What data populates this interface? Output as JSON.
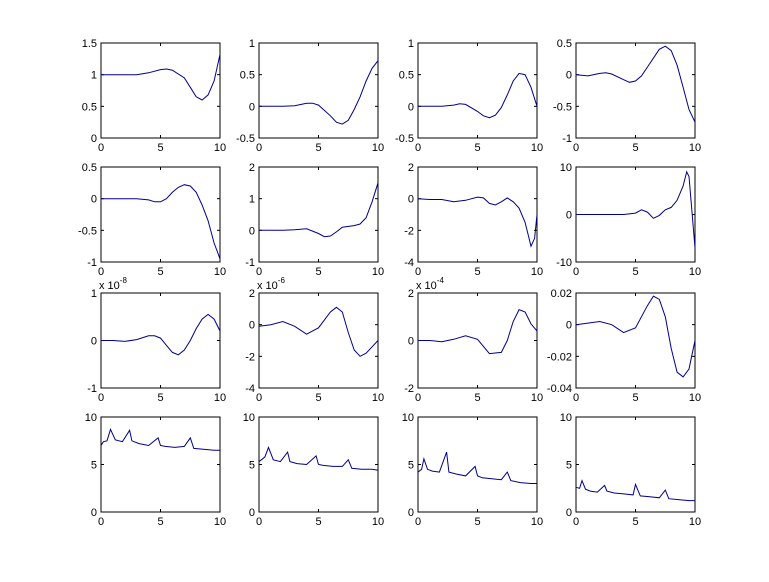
{
  "figure": {
    "background": "#ffffff",
    "line_color": "#00008b",
    "axes_color": "#000000"
  },
  "chart_data": [
    {
      "type": "line",
      "xlim": [
        0,
        10
      ],
      "ylim": [
        0,
        1.5
      ],
      "xticks": [
        "0",
        "5",
        "10"
      ],
      "yticks": [
        "0",
        "0.5",
        "1",
        "1.5"
      ],
      "exponent": "",
      "series": [
        {
          "x": [
            0,
            1,
            2,
            3,
            4,
            5,
            5.5,
            6,
            7,
            7.5,
            8,
            8.5,
            9,
            9.5,
            9.8,
            10
          ],
          "y": [
            1.0,
            1.0,
            1.0,
            1.0,
            1.03,
            1.08,
            1.09,
            1.07,
            0.95,
            0.8,
            0.65,
            0.6,
            0.68,
            0.9,
            1.15,
            1.32
          ]
        }
      ]
    },
    {
      "type": "line",
      "xlim": [
        0,
        10
      ],
      "ylim": [
        -0.5,
        1
      ],
      "xticks": [
        "0",
        "5",
        "10"
      ],
      "yticks": [
        "-0.5",
        "0",
        "0.5",
        "1"
      ],
      "exponent": "",
      "series": [
        {
          "x": [
            0,
            1,
            2,
            3,
            4,
            4.5,
            5,
            6,
            6.5,
            7,
            7.5,
            8,
            8.5,
            9,
            9.5,
            10
          ],
          "y": [
            0,
            0,
            0,
            0.01,
            0.05,
            0.05,
            0.02,
            -0.15,
            -0.25,
            -0.28,
            -0.22,
            -0.05,
            0.15,
            0.4,
            0.6,
            0.72
          ]
        }
      ]
    },
    {
      "type": "line",
      "xlim": [
        0,
        10
      ],
      "ylim": [
        -0.5,
        1
      ],
      "xticks": [
        "0",
        "5",
        "10"
      ],
      "yticks": [
        "-0.5",
        "0",
        "0.5",
        "1"
      ],
      "exponent": "",
      "series": [
        {
          "x": [
            0,
            1,
            2,
            3,
            3.5,
            4,
            5,
            5.5,
            6,
            6.5,
            7,
            7.5,
            8,
            8.5,
            9,
            9.5,
            10
          ],
          "y": [
            0,
            0,
            0,
            0.02,
            0.04,
            0.03,
            -0.08,
            -0.15,
            -0.18,
            -0.14,
            -0.02,
            0.18,
            0.4,
            0.52,
            0.5,
            0.3,
            0.0
          ]
        }
      ]
    },
    {
      "type": "line",
      "xlim": [
        0,
        10
      ],
      "ylim": [
        -1,
        0.5
      ],
      "xticks": [
        "0",
        "5",
        "10"
      ],
      "yticks": [
        "-1",
        "-0.5",
        "0",
        "0.5"
      ],
      "exponent": "",
      "series": [
        {
          "x": [
            0,
            1,
            2,
            2.5,
            3,
            4,
            4.5,
            5,
            5.5,
            6,
            7,
            7.5,
            8,
            8.5,
            9,
            9.5,
            10
          ],
          "y": [
            0,
            -0.02,
            0.02,
            0.03,
            0.01,
            -0.08,
            -0.12,
            -0.1,
            -0.02,
            0.12,
            0.4,
            0.45,
            0.38,
            0.15,
            -0.2,
            -0.55,
            -0.75
          ]
        }
      ]
    },
    {
      "type": "line",
      "xlim": [
        0,
        10
      ],
      "ylim": [
        -1,
        0.5
      ],
      "xticks": [
        "0",
        "5",
        "10"
      ],
      "yticks": [
        "-1",
        "-0.5",
        "0",
        "0.5"
      ],
      "exponent": "",
      "series": [
        {
          "x": [
            0,
            1,
            2,
            3,
            4,
            4.5,
            5,
            5.5,
            6,
            6.5,
            7,
            7.5,
            8,
            8.5,
            9,
            9.5,
            10
          ],
          "y": [
            0,
            0,
            0,
            0,
            -0.02,
            -0.05,
            -0.05,
            0,
            0.1,
            0.18,
            0.22,
            0.2,
            0.1,
            -0.1,
            -0.35,
            -0.7,
            -0.95
          ]
        }
      ]
    },
    {
      "type": "line",
      "xlim": [
        0,
        10
      ],
      "ylim": [
        -1,
        2
      ],
      "xticks": [
        "0",
        "5",
        "10"
      ],
      "yticks": [
        "-1",
        "0",
        "1",
        "2"
      ],
      "exponent": "",
      "series": [
        {
          "x": [
            0,
            1,
            2,
            3,
            4,
            5,
            5.5,
            6,
            6.5,
            7,
            8,
            8.5,
            9,
            9.5,
            10
          ],
          "y": [
            0,
            0,
            0,
            0.02,
            0.05,
            -0.1,
            -0.2,
            -0.18,
            -0.05,
            0.1,
            0.15,
            0.2,
            0.4,
            0.9,
            1.5
          ]
        }
      ]
    },
    {
      "type": "line",
      "xlim": [
        0,
        10
      ],
      "ylim": [
        -4,
        2
      ],
      "xticks": [
        "0",
        "5",
        "10"
      ],
      "yticks": [
        "-4",
        "-2",
        "0",
        "2"
      ],
      "exponent": "",
      "series": [
        {
          "x": [
            0,
            1,
            2,
            3,
            4,
            5,
            5.5,
            6,
            6.5,
            7,
            7.5,
            8,
            8.5,
            9,
            9.5,
            9.8,
            10
          ],
          "y": [
            0,
            -0.05,
            -0.05,
            -0.2,
            -0.1,
            0.1,
            0.05,
            -0.3,
            -0.4,
            -0.2,
            0.05,
            -0.2,
            -0.6,
            -1.5,
            -3.0,
            -2.5,
            -1.0
          ]
        }
      ]
    },
    {
      "type": "line",
      "xlim": [
        0,
        10
      ],
      "ylim": [
        -10,
        10
      ],
      "xticks": [
        "0",
        "5",
        "10"
      ],
      "yticks": [
        "-10",
        "0",
        "10"
      ],
      "exponent": "",
      "series": [
        {
          "x": [
            0,
            1,
            2,
            3,
            4,
            5,
            5.5,
            6,
            6.5,
            7,
            7.5,
            8,
            8.5,
            9,
            9.3,
            9.5,
            9.7,
            9.9,
            10
          ],
          "y": [
            0,
            0,
            0,
            0,
            0,
            0.3,
            1.0,
            0.5,
            -0.8,
            -0.2,
            1.0,
            1.5,
            3.0,
            6.0,
            9.0,
            8.0,
            2.0,
            -4.0,
            -7.0
          ]
        }
      ]
    },
    {
      "type": "line",
      "xlim": [
        0,
        10
      ],
      "ylim": [
        -1,
        1
      ],
      "xticks": [
        "0",
        "5",
        "10"
      ],
      "yticks": [
        "-1",
        "0",
        "1"
      ],
      "exponent": "x 10",
      "exponent_power": "-8",
      "series": [
        {
          "x": [
            0,
            1,
            2,
            3,
            4,
            4.5,
            5,
            5.5,
            6,
            6.5,
            7,
            7.5,
            8,
            8.5,
            9,
            9.5,
            10
          ],
          "y": [
            0,
            0,
            -0.02,
            0.02,
            0.1,
            0.1,
            0.05,
            -0.1,
            -0.25,
            -0.3,
            -0.2,
            0,
            0.25,
            0.45,
            0.55,
            0.45,
            0.2
          ]
        }
      ]
    },
    {
      "type": "line",
      "xlim": [
        0,
        10
      ],
      "ylim": [
        -4,
        2
      ],
      "xticks": [
        "0",
        "5",
        "10"
      ],
      "yticks": [
        "-4",
        "-2",
        "0",
        "2"
      ],
      "exponent": "x 10",
      "exponent_power": "-6",
      "series": [
        {
          "x": [
            0,
            1,
            2,
            3,
            4,
            5,
            6,
            6.5,
            7,
            7.5,
            8,
            8.5,
            9,
            9.5,
            10
          ],
          "y": [
            -0.1,
            0,
            0.2,
            -0.1,
            -0.6,
            -0.2,
            0.8,
            1.1,
            0.8,
            -0.5,
            -1.6,
            -2.0,
            -1.8,
            -1.4,
            -1.0
          ]
        }
      ]
    },
    {
      "type": "line",
      "xlim": [
        0,
        10
      ],
      "ylim": [
        -2,
        2
      ],
      "xticks": [
        "0",
        "5",
        "10"
      ],
      "yticks": [
        "-2",
        "0",
        "2"
      ],
      "exponent": "x 10",
      "exponent_power": "-4",
      "series": [
        {
          "x": [
            0,
            1,
            2,
            3,
            4,
            5,
            6,
            7,
            7.5,
            8,
            8.5,
            9,
            9.5,
            10
          ],
          "y": [
            0,
            0,
            -0.05,
            0.05,
            0.2,
            0.05,
            -0.55,
            -0.5,
            0,
            0.8,
            1.3,
            1.2,
            0.7,
            0.4
          ]
        }
      ]
    },
    {
      "type": "line",
      "xlim": [
        0,
        10
      ],
      "ylim": [
        -0.04,
        0.02
      ],
      "xticks": [
        "0",
        "5",
        "10"
      ],
      "yticks": [
        "-0.04",
        "-0.02",
        "0",
        "0.02"
      ],
      "exponent": "",
      "series": [
        {
          "x": [
            0,
            1,
            2,
            3,
            4,
            5,
            6,
            6.5,
            7,
            7.5,
            8,
            8.5,
            9,
            9.5,
            10
          ],
          "y": [
            0,
            0.001,
            0.002,
            0,
            -0.005,
            -0.002,
            0.012,
            0.018,
            0.016,
            0.005,
            -0.015,
            -0.03,
            -0.033,
            -0.028,
            -0.01
          ]
        }
      ]
    },
    {
      "type": "line",
      "xlim": [
        0,
        10
      ],
      "ylim": [
        0,
        10
      ],
      "xticks": [
        "0",
        "5",
        "10"
      ],
      "yticks": [
        "0",
        "5",
        "10"
      ],
      "exponent": "",
      "series": [
        {
          "x": [
            0,
            0.2,
            0.5,
            0.8,
            1.2,
            1.8,
            2.4,
            2.6,
            3.2,
            4.0,
            4.8,
            5.0,
            5.4,
            6.2,
            7.0,
            7.5,
            7.8,
            8.6,
            9.5,
            10
          ],
          "y": [
            7.0,
            7.4,
            7.5,
            8.7,
            7.6,
            7.4,
            8.6,
            7.5,
            7.2,
            7.0,
            7.8,
            7.0,
            6.9,
            6.8,
            6.9,
            7.8,
            6.7,
            6.6,
            6.5,
            6.5
          ]
        }
      ]
    },
    {
      "type": "line",
      "xlim": [
        0,
        10
      ],
      "ylim": [
        0,
        10
      ],
      "xticks": [
        "0",
        "5",
        "10"
      ],
      "yticks": [
        "0",
        "5",
        "10"
      ],
      "exponent": "",
      "series": [
        {
          "x": [
            0,
            0.3,
            0.5,
            0.8,
            1.2,
            1.8,
            2.4,
            2.6,
            3.2,
            4.0,
            4.8,
            5.0,
            5.4,
            6.2,
            7.0,
            7.5,
            7.8,
            8.6,
            9.5,
            10
          ],
          "y": [
            5.3,
            5.6,
            5.8,
            6.8,
            5.5,
            5.3,
            6.3,
            5.3,
            5.1,
            5.0,
            5.9,
            5.0,
            4.9,
            4.8,
            4.8,
            5.5,
            4.6,
            4.5,
            4.5,
            4.4
          ]
        }
      ]
    },
    {
      "type": "line",
      "xlim": [
        0,
        10
      ],
      "ylim": [
        0,
        10
      ],
      "xticks": [
        "0",
        "5",
        "10"
      ],
      "yticks": [
        "0",
        "5",
        "10"
      ],
      "exponent": "",
      "series": [
        {
          "x": [
            0,
            0.3,
            0.5,
            0.8,
            1.2,
            1.8,
            2.4,
            2.6,
            3.2,
            4.0,
            4.8,
            5.0,
            5.4,
            6.2,
            7.0,
            7.5,
            7.8,
            8.6,
            9.5,
            10
          ],
          "y": [
            4.2,
            4.5,
            5.6,
            4.5,
            4.3,
            4.2,
            6.3,
            4.2,
            4.0,
            3.8,
            4.8,
            3.8,
            3.6,
            3.5,
            3.4,
            4.2,
            3.3,
            3.1,
            3.0,
            3.0
          ]
        }
      ]
    },
    {
      "type": "line",
      "xlim": [
        0,
        10
      ],
      "ylim": [
        0,
        10
      ],
      "xticks": [
        "0",
        "5",
        "10"
      ],
      "yticks": [
        "0",
        "5",
        "10"
      ],
      "exponent": "",
      "series": [
        {
          "x": [
            0,
            0.3,
            0.5,
            0.8,
            1.2,
            1.8,
            2.4,
            2.6,
            3.2,
            4.0,
            4.8,
            5.0,
            5.4,
            6.2,
            7.0,
            7.5,
            7.8,
            8.6,
            9.5,
            10
          ],
          "y": [
            2.6,
            2.5,
            3.3,
            2.4,
            2.2,
            2.1,
            2.8,
            2.2,
            2.0,
            1.9,
            1.8,
            2.9,
            1.7,
            1.6,
            1.5,
            2.3,
            1.4,
            1.3,
            1.2,
            1.2
          ]
        }
      ]
    }
  ]
}
